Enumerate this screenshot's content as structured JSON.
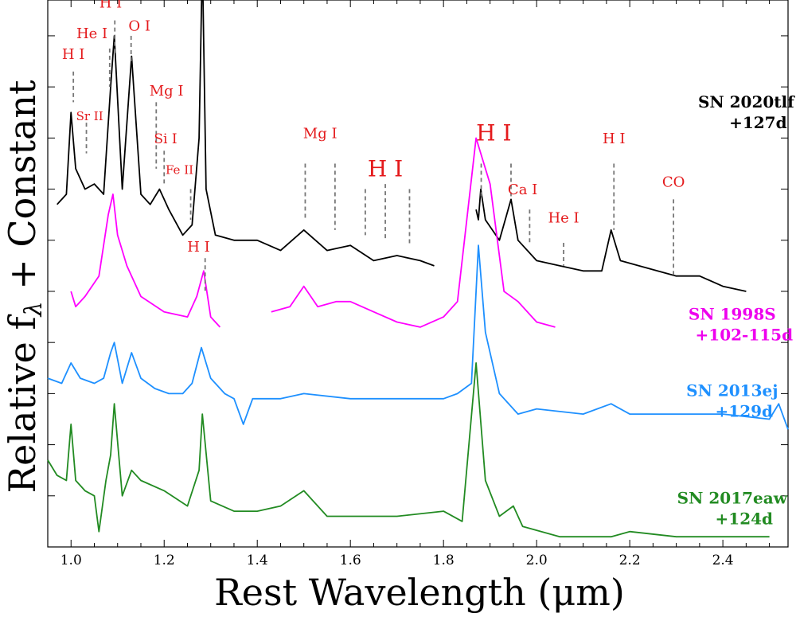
{
  "chart_data": {
    "type": "line",
    "title": "",
    "xlabel": "Rest Wavelength (μm)",
    "ylabel": "Relative f",
    "ylabel_sub": "λ",
    "ylabel_suffix": " + Constant",
    "xlim": [
      0.95,
      2.54
    ],
    "ylim": [
      0,
      10.7
    ],
    "x_ticks": [
      1.0,
      1.2,
      1.4,
      1.6,
      1.8,
      2.0,
      2.2,
      2.4
    ],
    "x_tick_labels": [
      "1.0",
      "1.2",
      "1.4",
      "1.6",
      "1.8",
      "2.0",
      "2.2",
      "2.4"
    ],
    "series": [
      {
        "name": "SN 2020tlf",
        "epoch": "+127d",
        "color": "#000000",
        "label_color": "#000000",
        "segments": [
          [
            [
              0.97,
              6.7
            ],
            [
              0.99,
              6.9
            ],
            [
              1.0,
              8.5
            ],
            [
              1.01,
              7.4
            ],
            [
              1.03,
              7.0
            ],
            [
              1.05,
              7.1
            ],
            [
              1.07,
              6.9
            ],
            [
              1.085,
              9.0
            ],
            [
              1.093,
              10.0
            ],
            [
              1.11,
              7.0
            ],
            [
              1.13,
              9.6
            ],
            [
              1.15,
              6.9
            ],
            [
              1.17,
              6.7
            ],
            [
              1.19,
              7.0
            ],
            [
              1.21,
              6.6
            ],
            [
              1.24,
              6.1
            ],
            [
              1.26,
              6.3
            ],
            [
              1.275,
              8.0
            ],
            [
              1.282,
              11.5
            ],
            [
              1.29,
              7.0
            ],
            [
              1.31,
              6.1
            ],
            [
              1.35,
              6.0
            ],
            [
              1.4,
              6.0
            ],
            [
              1.45,
              5.8
            ],
            [
              1.5,
              6.2
            ],
            [
              1.55,
              5.8
            ],
            [
              1.6,
              5.9
            ],
            [
              1.65,
              5.6
            ],
            [
              1.7,
              5.7
            ],
            [
              1.75,
              5.6
            ],
            [
              1.78,
              5.5
            ]
          ],
          [
            [
              1.87,
              6.6
            ],
            [
              1.875,
              6.4
            ],
            [
              1.88,
              7.0
            ],
            [
              1.89,
              6.4
            ],
            [
              1.92,
              6.0
            ],
            [
              1.945,
              6.8
            ],
            [
              1.96,
              6.0
            ],
            [
              2.0,
              5.6
            ],
            [
              2.05,
              5.5
            ],
            [
              2.1,
              5.4
            ],
            [
              2.14,
              5.4
            ],
            [
              2.16,
              6.2
            ],
            [
              2.18,
              5.6
            ],
            [
              2.22,
              5.5
            ],
            [
              2.3,
              5.3
            ],
            [
              2.35,
              5.3
            ],
            [
              2.4,
              5.1
            ],
            [
              2.45,
              5.0
            ]
          ]
        ]
      },
      {
        "name": "SN 1998S",
        "epoch": "+102-115d",
        "color": "#ff00ff",
        "label_color": "#ee00ee",
        "segments": [
          [
            [
              1.0,
              5.0
            ],
            [
              1.01,
              4.7
            ],
            [
              1.03,
              4.9
            ],
            [
              1.06,
              5.3
            ],
            [
              1.08,
              6.5
            ],
            [
              1.09,
              6.9
            ],
            [
              1.1,
              6.1
            ],
            [
              1.12,
              5.5
            ],
            [
              1.15,
              4.9
            ],
            [
              1.2,
              4.6
            ],
            [
              1.25,
              4.5
            ],
            [
              1.27,
              4.9
            ],
            [
              1.285,
              5.4
            ],
            [
              1.3,
              4.5
            ],
            [
              1.32,
              4.3
            ]
          ],
          [
            [
              1.43,
              4.6
            ],
            [
              1.47,
              4.7
            ],
            [
              1.5,
              5.1
            ],
            [
              1.53,
              4.7
            ],
            [
              1.57,
              4.8
            ],
            [
              1.6,
              4.8
            ],
            [
              1.65,
              4.6
            ],
            [
              1.7,
              4.4
            ],
            [
              1.75,
              4.3
            ],
            [
              1.8,
              4.5
            ],
            [
              1.83,
              4.8
            ],
            [
              1.85,
              6.4
            ],
            [
              1.87,
              8.0
            ],
            [
              1.9,
              7.1
            ],
            [
              1.93,
              5.0
            ],
            [
              1.96,
              4.8
            ],
            [
              2.0,
              4.4
            ],
            [
              2.04,
              4.3
            ]
          ]
        ]
      },
      {
        "name": "SN 2013ej",
        "epoch": "+129d",
        "color": "#1e90ff",
        "label_color": "#1e90ff",
        "segments": [
          [
            [
              0.95,
              3.3
            ],
            [
              0.98,
              3.2
            ],
            [
              1.0,
              3.6
            ],
            [
              1.02,
              3.3
            ],
            [
              1.05,
              3.2
            ],
            [
              1.07,
              3.3
            ],
            [
              1.085,
              3.8
            ],
            [
              1.093,
              4.0
            ],
            [
              1.11,
              3.2
            ],
            [
              1.13,
              3.8
            ],
            [
              1.15,
              3.3
            ],
            [
              1.18,
              3.1
            ],
            [
              1.21,
              3.0
            ],
            [
              1.24,
              3.0
            ],
            [
              1.26,
              3.2
            ],
            [
              1.28,
              3.9
            ],
            [
              1.3,
              3.3
            ],
            [
              1.33,
              3.0
            ],
            [
              1.35,
              2.9
            ],
            [
              1.37,
              2.4
            ],
            [
              1.39,
              2.9
            ],
            [
              1.45,
              2.9
            ],
            [
              1.5,
              3.0
            ],
            [
              1.6,
              2.9
            ],
            [
              1.7,
              2.9
            ],
            [
              1.8,
              2.9
            ],
            [
              1.83,
              3.0
            ],
            [
              1.86,
              3.2
            ],
            [
              1.875,
              5.9
            ],
            [
              1.89,
              4.2
            ],
            [
              1.92,
              3.0
            ],
            [
              1.96,
              2.6
            ],
            [
              2.0,
              2.7
            ],
            [
              2.1,
              2.6
            ],
            [
              2.16,
              2.8
            ],
            [
              2.2,
              2.6
            ],
            [
              2.3,
              2.6
            ],
            [
              2.4,
              2.6
            ],
            [
              2.5,
              2.5
            ],
            [
              2.52,
              2.8
            ],
            [
              2.54,
              2.3
            ]
          ]
        ]
      },
      {
        "name": "SN 2017eaw",
        "epoch": "+124d",
        "color": "#228b22",
        "label_color": "#228b22",
        "segments": [
          [
            [
              0.95,
              1.7
            ],
            [
              0.97,
              1.4
            ],
            [
              0.99,
              1.3
            ],
            [
              1.0,
              2.4
            ],
            [
              1.01,
              1.3
            ],
            [
              1.03,
              1.1
            ],
            [
              1.05,
              1.0
            ],
            [
              1.06,
              0.3
            ],
            [
              1.075,
              1.3
            ],
            [
              1.085,
              1.8
            ],
            [
              1.093,
              2.8
            ],
            [
              1.11,
              1.0
            ],
            [
              1.13,
              1.5
            ],
            [
              1.15,
              1.3
            ],
            [
              1.2,
              1.1
            ],
            [
              1.25,
              0.8
            ],
            [
              1.275,
              1.5
            ],
            [
              1.282,
              2.6
            ],
            [
              1.3,
              0.9
            ],
            [
              1.35,
              0.7
            ],
            [
              1.4,
              0.7
            ],
            [
              1.45,
              0.8
            ],
            [
              1.5,
              1.1
            ],
            [
              1.55,
              0.6
            ],
            [
              1.6,
              0.6
            ],
            [
              1.7,
              0.6
            ],
            [
              1.8,
              0.7
            ],
            [
              1.84,
              0.5
            ],
            [
              1.87,
              3.6
            ],
            [
              1.89,
              1.3
            ],
            [
              1.92,
              0.6
            ],
            [
              1.95,
              0.8
            ],
            [
              1.97,
              0.4
            ],
            [
              2.05,
              0.2
            ],
            [
              2.16,
              0.2
            ],
            [
              2.2,
              0.3
            ],
            [
              2.3,
              0.2
            ],
            [
              2.4,
              0.2
            ],
            [
              2.5,
              0.2
            ]
          ]
        ]
      }
    ],
    "line_ids": [
      {
        "label": "H I",
        "x": 1.005,
        "top": 9.3,
        "bottom": 8.7,
        "lx": 1.005,
        "ly": 9.55,
        "size": 18
      },
      {
        "label": "He I",
        "x": 1.083,
        "top": 9.75,
        "bottom": 9.0,
        "lx": 1.045,
        "ly": 9.95,
        "size": 18
      },
      {
        "label": "H I",
        "x": 1.094,
        "top": 10.3,
        "bottom": 9.6,
        "lx": 1.085,
        "ly": 10.55,
        "size": 18
      },
      {
        "label": "O I",
        "x": 1.129,
        "top": 10.0,
        "bottom": 9.5,
        "lx": 1.147,
        "ly": 10.1,
        "size": 18
      },
      {
        "label": "Sr II",
        "x": 1.033,
        "top": 8.3,
        "bottom": 7.7,
        "lx": 1.04,
        "ly": 8.35,
        "size": 15
      },
      {
        "label": "Mg I",
        "x": 1.183,
        "top": 8.7,
        "bottom": 7.4,
        "lx": 1.205,
        "ly": 8.83,
        "size": 18
      },
      {
        "label": "Si I",
        "x": 1.2,
        "top": 7.75,
        "bottom": 7.1,
        "lx": 1.203,
        "ly": 7.9,
        "size": 17
      },
      {
        "label": "Fe II",
        "x": 1.257,
        "top": 7.0,
        "bottom": 6.4,
        "lx": 1.233,
        "ly": 7.3,
        "size": 15
      },
      {
        "label": "H I",
        "x": 1.288,
        "top": 5.65,
        "bottom": 5.0,
        "lx": 1.274,
        "ly": 5.78,
        "size": 18
      },
      {
        "label": "Mg I",
        "x": 1.503,
        "top": 7.5,
        "bottom": 6.4,
        "lx": 1.535,
        "ly": 8.0,
        "size": 18
      },
      {
        "label": "",
        "x": 1.567,
        "top": 7.5,
        "bottom": 6.2,
        "lx": 0,
        "ly": 0,
        "size": 0
      },
      {
        "label": "",
        "x": 1.632,
        "top": 7.0,
        "bottom": 6.1,
        "lx": 0,
        "ly": 0,
        "size": 0
      },
      {
        "label": "H I",
        "x": 1.675,
        "top": 7.1,
        "bottom": 6.0,
        "lx": 1.675,
        "ly": 7.25,
        "size": 28
      },
      {
        "label": "",
        "x": 1.727,
        "top": 7.0,
        "bottom": 5.9,
        "lx": 0,
        "ly": 0,
        "size": 0
      },
      {
        "label": "H I",
        "x": 1.881,
        "top": 7.5,
        "bottom": 6.8,
        "lx": 1.908,
        "ly": 7.95,
        "size": 28
      },
      {
        "label": "",
        "x": 1.945,
        "top": 7.5,
        "bottom": 6.8,
        "lx": 0,
        "ly": 0,
        "size": 0
      },
      {
        "label": "Ca I",
        "x": 1.985,
        "top": 6.6,
        "bottom": 5.9,
        "lx": 1.97,
        "ly": 6.9,
        "size": 18
      },
      {
        "label": "He I",
        "x": 2.058,
        "top": 5.95,
        "bottom": 5.5,
        "lx": 2.058,
        "ly": 6.35,
        "size": 18
      },
      {
        "label": "H I",
        "x": 2.166,
        "top": 7.5,
        "bottom": 6.2,
        "lx": 2.166,
        "ly": 7.9,
        "size": 18
      },
      {
        "label": "CO",
        "x": 2.294,
        "top": 6.8,
        "bottom": 5.3,
        "lx": 2.294,
        "ly": 7.05,
        "size": 18
      }
    ],
    "series_labels_pos": [
      {
        "x": 2.45,
        "y": 8.6
      },
      {
        "x": 2.42,
        "y": 4.45
      },
      {
        "x": 2.42,
        "y": 2.95
      },
      {
        "x": 2.42,
        "y": 0.85
      }
    ]
  }
}
